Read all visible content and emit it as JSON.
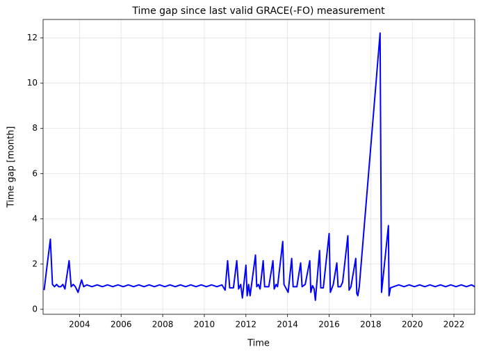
{
  "chart_data": {
    "type": "line",
    "title": "Time gap since last valid GRACE(-FO) measurement",
    "xlabel": "Time",
    "ylabel": "Time gap [month]",
    "xlim": [
      2002.25,
      2023.0
    ],
    "ylim": [
      -0.22,
      12.82
    ],
    "xticks": [
      2004,
      2006,
      2008,
      2010,
      2012,
      2014,
      2016,
      2018,
      2020,
      2022
    ],
    "yticks": [
      0,
      2,
      4,
      6,
      8,
      10,
      12
    ],
    "grid": true,
    "series": [
      {
        "color": "#0000ff",
        "x": [
          2002.3,
          2002.45,
          2002.6,
          2002.7,
          2002.8,
          2002.9,
          2003.0,
          2003.1,
          2003.2,
          2003.3,
          2003.5,
          2003.6,
          2003.7,
          2003.8,
          2003.93,
          2004.1,
          2004.2,
          2004.35,
          2004.6,
          2004.85,
          2005.1,
          2005.35,
          2005.6,
          2005.85,
          2006.1,
          2006.35,
          2006.6,
          2006.85,
          2007.1,
          2007.35,
          2007.6,
          2007.85,
          2008.1,
          2008.35,
          2008.6,
          2008.85,
          2009.1,
          2009.35,
          2009.6,
          2009.85,
          2010.1,
          2010.35,
          2010.6,
          2010.85,
          2011.0,
          2011.12,
          2011.22,
          2011.4,
          2011.56,
          2011.65,
          2011.75,
          2011.83,
          2012.0,
          2012.06,
          2012.13,
          2012.2,
          2012.46,
          2012.52,
          2012.6,
          2012.68,
          2012.83,
          2012.9,
          2013.1,
          2013.3,
          2013.36,
          2013.45,
          2013.52,
          2013.77,
          2013.83,
          2014.03,
          2014.2,
          2014.27,
          2014.45,
          2014.63,
          2014.7,
          2014.85,
          2015.07,
          2015.12,
          2015.2,
          2015.28,
          2015.34,
          2015.54,
          2015.6,
          2015.72,
          2016.0,
          2016.06,
          2016.2,
          2016.37,
          2016.43,
          2016.55,
          2016.65,
          2016.9,
          2016.96,
          2017.05,
          2017.28,
          2017.33,
          2017.38,
          2017.45,
          2018.45,
          2018.52,
          2018.85,
          2018.88,
          2018.95,
          2019.1,
          2019.35,
          2019.6,
          2019.85,
          2020.1,
          2020.35,
          2020.6,
          2020.85,
          2021.1,
          2021.35,
          2021.6,
          2021.85,
          2022.1,
          2022.35,
          2022.6,
          2022.85,
          2023.0
        ],
        "values": [
          0.85,
          2.0,
          3.1,
          1.1,
          1.0,
          1.1,
          1.0,
          1.0,
          1.1,
          0.9,
          2.15,
          1.0,
          1.1,
          1.0,
          0.75,
          1.3,
          1.0,
          1.08,
          1.0,
          1.08,
          1.0,
          1.08,
          1.0,
          1.08,
          1.0,
          1.08,
          1.0,
          1.08,
          1.0,
          1.08,
          1.0,
          1.08,
          1.0,
          1.08,
          1.0,
          1.08,
          1.0,
          1.08,
          1.0,
          1.08,
          1.0,
          1.08,
          1.0,
          1.08,
          0.85,
          2.15,
          0.95,
          0.95,
          2.15,
          0.9,
          1.1,
          0.5,
          1.95,
          0.6,
          1.1,
          0.6,
          2.4,
          1.0,
          1.1,
          0.9,
          2.15,
          1.0,
          1.0,
          2.15,
          0.9,
          1.1,
          1.0,
          3.0,
          1.1,
          0.75,
          2.25,
          1.0,
          1.0,
          2.05,
          1.0,
          1.1,
          2.15,
          0.75,
          1.05,
          0.9,
          0.4,
          2.6,
          0.95,
          0.95,
          3.35,
          0.75,
          1.1,
          2.05,
          1.0,
          1.0,
          1.2,
          3.25,
          0.85,
          1.0,
          2.25,
          0.7,
          0.6,
          1.0,
          12.22,
          0.75,
          3.7,
          0.6,
          0.95,
          1.0,
          1.08,
          1.0,
          1.08,
          1.0,
          1.08,
          1.0,
          1.08,
          1.0,
          1.08,
          1.0,
          1.08,
          1.0,
          1.08,
          1.0,
          1.08,
          1.0
        ]
      }
    ]
  }
}
